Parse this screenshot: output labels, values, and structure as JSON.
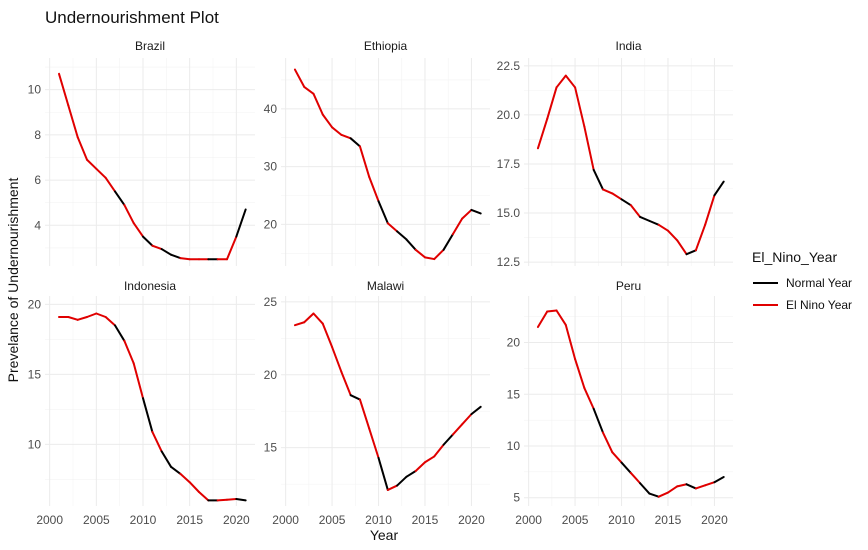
{
  "chart_data": {
    "type": "line",
    "title": "Undernourishment Plot",
    "xlabel": "Year",
    "ylabel": "Prevelance of Undernourishment",
    "legend": {
      "title": "El_Nino_Year",
      "position": "right",
      "entries": [
        {
          "name": "Normal Year",
          "color": "#000000"
        },
        {
          "name": "El Nino Year",
          "color": "#e00000"
        }
      ]
    },
    "colors": {
      "normal": "#000000",
      "elnino": "#e00000"
    },
    "x_ticks": [
      2000,
      2005,
      2010,
      2015,
      2020
    ],
    "x_tick_labels": [
      "2000",
      "2005",
      "2010",
      "2015",
      "2020"
    ],
    "xlim": [
      1999.5,
      2022
    ],
    "grid": true,
    "facets": [
      {
        "name": "Brazil",
        "ylim": [
          2.2,
          11.4
        ],
        "y_ticks": [
          4,
          6,
          8,
          10
        ],
        "y_tick_labels": [
          "4",
          "6",
          "8",
          "10"
        ],
        "x": [
          2001,
          2002,
          2003,
          2004,
          2005,
          2006,
          2007,
          2008,
          2009,
          2010,
          2011,
          2012,
          2013,
          2014,
          2015,
          2016,
          2017,
          2018,
          2019,
          2020,
          2021
        ],
        "y": [
          10.7,
          9.3,
          7.9,
          6.9,
          6.5,
          6.1,
          5.5,
          4.9,
          4.1,
          3.5,
          3.1,
          2.95,
          2.7,
          2.55,
          2.5,
          2.5,
          2.5,
          2.5,
          2.5,
          3.5,
          4.7
        ],
        "el_nino": [
          0,
          1,
          1,
          1,
          1,
          1,
          1,
          0,
          1,
          1,
          0,
          1,
          0,
          0,
          1,
          1,
          1,
          0,
          1,
          1,
          0
        ]
      },
      {
        "name": "Ethiopia",
        "ylim": [
          12.8,
          48.8
        ],
        "y_ticks": [
          20,
          30,
          40
        ],
        "y_tick_labels": [
          "20",
          "30",
          "40"
        ],
        "x": [
          2001,
          2002,
          2003,
          2004,
          2005,
          2006,
          2007,
          2008,
          2009,
          2010,
          2011,
          2012,
          2013,
          2014,
          2015,
          2016,
          2017,
          2018,
          2019,
          2020,
          2021
        ],
        "y": [
          46.8,
          43.8,
          42.6,
          39.0,
          36.8,
          35.5,
          34.9,
          33.5,
          28.2,
          24.0,
          20.2,
          18.8,
          17.4,
          15.6,
          14.3,
          14.0,
          15.6,
          18.3,
          21.0,
          22.5,
          21.9
        ],
        "el_nino": [
          0,
          1,
          1,
          1,
          1,
          1,
          1,
          0,
          1,
          1,
          0,
          1,
          0,
          0,
          1,
          1,
          1,
          0,
          1,
          1,
          0
        ]
      },
      {
        "name": "India",
        "ylim": [
          12.3,
          22.9
        ],
        "y_ticks": [
          12.5,
          15.0,
          17.5,
          20.0,
          22.5
        ],
        "y_tick_labels": [
          "12.5",
          "15.0",
          "17.5",
          "20.0",
          "22.5"
        ],
        "x": [
          2001,
          2002,
          2003,
          2004,
          2005,
          2006,
          2007,
          2008,
          2009,
          2010,
          2011,
          2012,
          2013,
          2014,
          2015,
          2016,
          2017,
          2018,
          2019,
          2020,
          2021
        ],
        "y": [
          18.3,
          19.8,
          21.4,
          22.0,
          21.4,
          19.4,
          17.2,
          16.2,
          16.0,
          15.7,
          15.4,
          14.8,
          14.6,
          14.4,
          14.1,
          13.6,
          12.9,
          13.1,
          14.4,
          15.9,
          16.6
        ],
        "el_nino": [
          0,
          1,
          1,
          1,
          1,
          1,
          1,
          0,
          1,
          1,
          0,
          1,
          0,
          0,
          1,
          1,
          1,
          0,
          1,
          1,
          0
        ]
      },
      {
        "name": "Indonesia",
        "ylim": [
          5.6,
          20.6
        ],
        "y_ticks": [
          10,
          15,
          20
        ],
        "y_tick_labels": [
          "10",
          "15",
          "20"
        ],
        "x": [
          2001,
          2002,
          2003,
          2004,
          2005,
          2006,
          2007,
          2008,
          2009,
          2010,
          2011,
          2012,
          2013,
          2014,
          2015,
          2016,
          2017,
          2018,
          2019,
          2020,
          2021
        ],
        "y": [
          19.1,
          19.1,
          18.9,
          19.1,
          19.35,
          19.1,
          18.5,
          17.4,
          15.8,
          13.3,
          10.9,
          9.5,
          8.4,
          7.9,
          7.3,
          6.6,
          6.0,
          6.0,
          6.05,
          6.1,
          6.0
        ],
        "el_nino": [
          0,
          1,
          1,
          1,
          1,
          1,
          1,
          0,
          1,
          1,
          0,
          1,
          0,
          0,
          1,
          1,
          1,
          0,
          1,
          1,
          0
        ]
      },
      {
        "name": "Malawi",
        "ylim": [
          11.0,
          25.4
        ],
        "y_ticks": [
          15,
          20,
          25
        ],
        "y_tick_labels": [
          "15",
          "20",
          "25"
        ],
        "x": [
          2001,
          2002,
          2003,
          2004,
          2005,
          2006,
          2007,
          2008,
          2009,
          2010,
          2011,
          2012,
          2013,
          2014,
          2015,
          2016,
          2017,
          2018,
          2019,
          2020,
          2021
        ],
        "y": [
          23.4,
          23.6,
          24.2,
          23.5,
          21.9,
          20.2,
          18.6,
          18.3,
          16.3,
          14.3,
          12.1,
          12.4,
          13.0,
          13.4,
          14.0,
          14.4,
          15.2,
          15.9,
          16.6,
          17.3,
          17.8
        ],
        "el_nino": [
          0,
          1,
          1,
          1,
          1,
          1,
          1,
          0,
          1,
          1,
          0,
          1,
          0,
          0,
          1,
          1,
          1,
          0,
          1,
          1,
          0
        ]
      },
      {
        "name": "Peru",
        "ylim": [
          4.2,
          24.5
        ],
        "y_ticks": [
          5,
          10,
          15,
          20
        ],
        "y_tick_labels": [
          "5",
          "10",
          "15",
          "20"
        ],
        "x": [
          2001,
          2002,
          2003,
          2004,
          2005,
          2006,
          2007,
          2008,
          2009,
          2010,
          2011,
          2012,
          2013,
          2014,
          2015,
          2016,
          2017,
          2018,
          2019,
          2020,
          2021
        ],
        "y": [
          21.5,
          23.0,
          23.1,
          21.7,
          18.4,
          15.6,
          13.6,
          11.3,
          9.4,
          8.4,
          7.4,
          6.4,
          5.4,
          5.1,
          5.5,
          6.1,
          6.3,
          5.9,
          6.2,
          6.5,
          7.0
        ],
        "el_nino": [
          0,
          1,
          1,
          1,
          1,
          1,
          1,
          0,
          1,
          1,
          0,
          1,
          0,
          0,
          1,
          1,
          1,
          0,
          1,
          1,
          0
        ]
      }
    ]
  }
}
